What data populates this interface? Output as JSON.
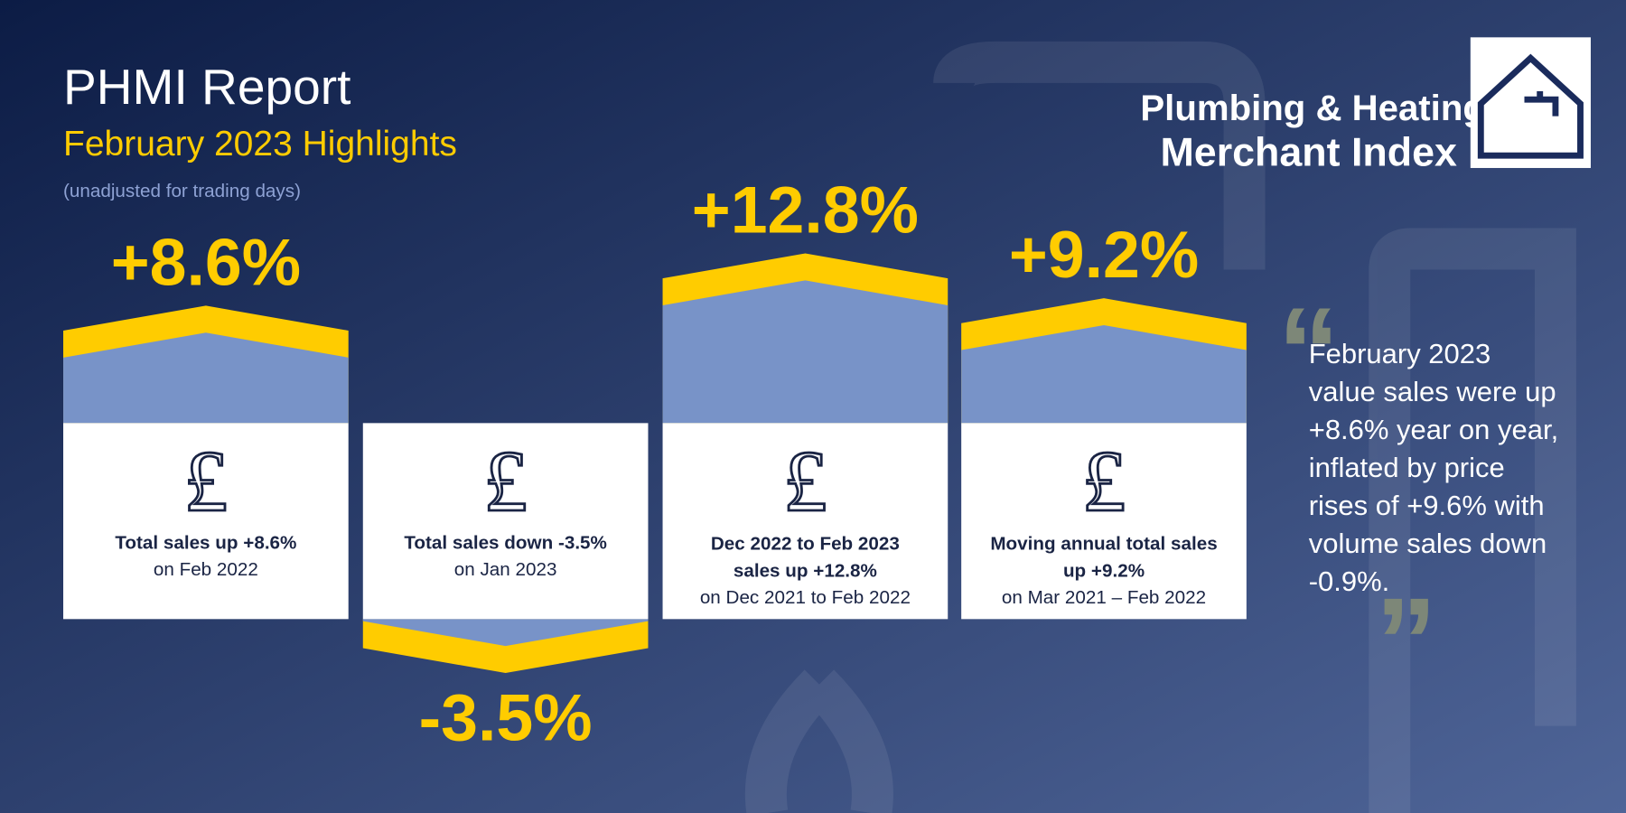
{
  "header": {
    "title": "PHMI Report",
    "subtitle": "February 2023 Highlights",
    "note": "(unadjusted for trading days)"
  },
  "logo": {
    "line1": "Plumbing & Heating",
    "line2": "Merchant Index"
  },
  "cards": [
    {
      "value": 8.6,
      "value_label": "+8.6%",
      "icon": "£",
      "title_lines": [
        "Total sales up +8.6%"
      ],
      "subtitle": "on Feb 2022"
    },
    {
      "value": -3.5,
      "value_label": "-3.5%",
      "icon": "£",
      "title_lines": [
        "Total sales down -3.5%"
      ],
      "subtitle": "on Jan 2023"
    },
    {
      "value": 12.8,
      "value_label": "+12.8%",
      "icon": "£",
      "title_lines": [
        "Dec 2022 to Feb 2023",
        "sales up +12.8%"
      ],
      "subtitle": "on Dec 2021 to Feb 2022"
    },
    {
      "value": 9.2,
      "value_label": "+9.2%",
      "icon": "£",
      "title_lines": [
        "Moving annual total sales",
        "up +9.2%"
      ],
      "subtitle": "on Mar 2021 – Feb 2022"
    }
  ],
  "quote": {
    "lines": [
      "February 2023",
      "value sales were up",
      "+8.6% year on year,",
      "inflated by price",
      "rises of +9.6% with",
      "volume sales down",
      "-0.9%."
    ]
  }
}
